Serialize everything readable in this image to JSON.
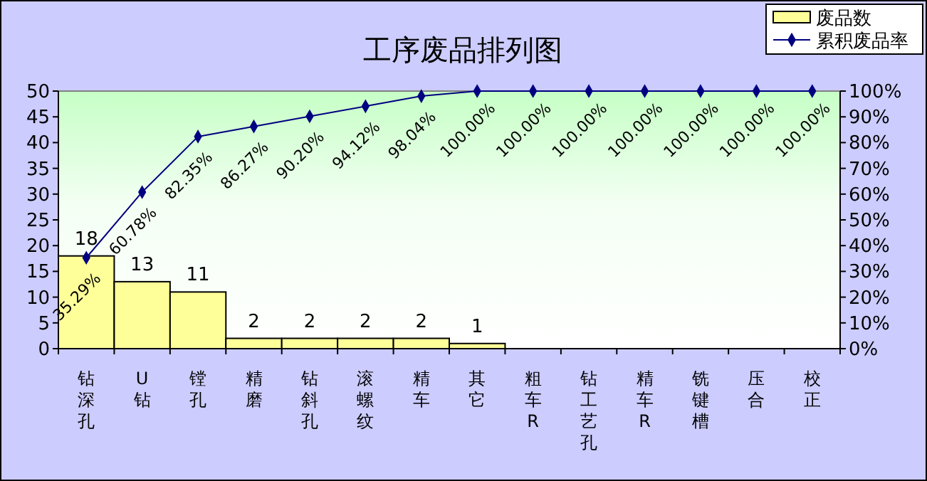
{
  "chart_data": {
    "type": "bar",
    "title": "工序废品排列图",
    "categories": [
      "钻深孔",
      "U钻",
      "镗孔",
      "精磨",
      "钻斜孔",
      "滚螺纹",
      "精车",
      "其它",
      "粗车R",
      "钻工艺孔",
      "精车R",
      "铣键槽",
      "压合",
      "校正"
    ],
    "series": [
      {
        "name": "废品数",
        "color": "#ffff99",
        "values": [
          18,
          13,
          11,
          2,
          2,
          2,
          2,
          1,
          0,
          0,
          0,
          0,
          0,
          0
        ],
        "value_labels": [
          "18",
          "13",
          "11",
          "2",
          "2",
          "2",
          "2",
          "1",
          null,
          null,
          null,
          null,
          null,
          null
        ]
      },
      {
        "name": "累积废品率",
        "type": "line",
        "axis": "y2",
        "color": "#000080",
        "values": [
          35.29,
          60.78,
          82.35,
          86.27,
          90.2,
          94.12,
          98.04,
          100,
          100,
          100,
          100,
          100,
          100,
          100
        ],
        "value_labels": [
          "35.29%",
          "60.78%",
          "82.35%",
          "86.27%",
          "90.20%",
          "94.12%",
          "98.04%",
          "100.00%",
          "100.00%",
          "100.00%",
          "100.00%",
          "100.00%",
          "100.00%",
          "100.00%"
        ]
      }
    ],
    "ylim": [
      0,
      50
    ],
    "yticks": [
      0,
      5,
      10,
      15,
      20,
      25,
      30,
      35,
      40,
      45,
      50
    ],
    "y2lim": [
      0,
      100
    ],
    "y2ticks": [
      {
        "value": 0,
        "label": "0%"
      },
      {
        "value": 10,
        "label": "10%"
      },
      {
        "value": 20,
        "label": "20%"
      },
      {
        "value": 30,
        "label": "30%"
      },
      {
        "value": 40,
        "label": "40%"
      },
      {
        "value": 50,
        "label": "50%"
      },
      {
        "value": 60,
        "label": "60%"
      },
      {
        "value": 70,
        "label": "70%"
      },
      {
        "value": 80,
        "label": "80%"
      },
      {
        "value": 90,
        "label": "90%"
      },
      {
        "value": 100,
        "label": "100%"
      }
    ],
    "legend": "top right",
    "marker": "diamond",
    "grid": false
  }
}
